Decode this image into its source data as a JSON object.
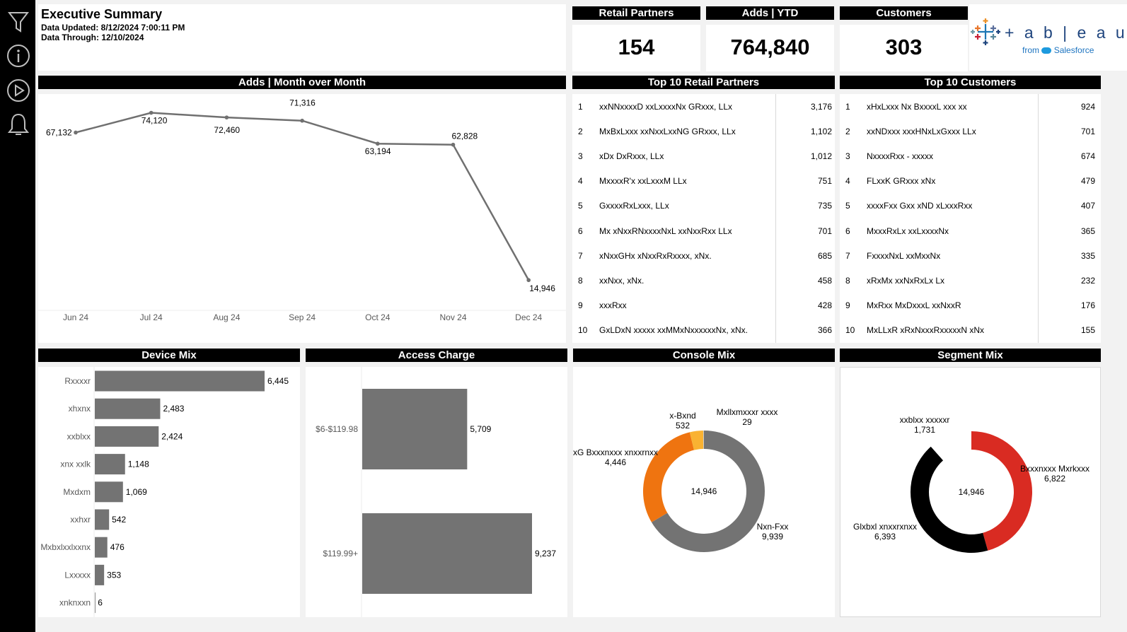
{
  "header": {
    "title": "Executive Summary",
    "updated": "Data Updated: 8/12/2024 7:00:11 PM",
    "through": "Data Through: 12/10/2024"
  },
  "logo": {
    "wordmark": "+ a b | e a u",
    "from": "from",
    "brand": "Salesforce"
  },
  "kpis": [
    {
      "label": "Retail Partners",
      "value": "154"
    },
    {
      "label": "Adds | YTD",
      "value": "764,840"
    },
    {
      "label": "Customers",
      "value": "303"
    }
  ],
  "mom": {
    "title": "Adds | Month over Month",
    "chart_data": {
      "type": "line",
      "categories": [
        "Jun 24",
        "Jul 24",
        "Aug 24",
        "Sep 24",
        "Oct 24",
        "Nov 24",
        "Dec 24"
      ],
      "values": [
        67132,
        74120,
        72460,
        71316,
        63194,
        62828,
        14946
      ],
      "labels": [
        "67,132",
        "74,120",
        "72,460",
        "71,316",
        "63,194",
        "62,828",
        "14,946"
      ],
      "ylim": [
        0,
        80000
      ],
      "color": "#707070"
    }
  },
  "top_partners": {
    "title": "Top 10 Retail Partners",
    "rows": [
      {
        "rank": "1",
        "name": "xxNNxxxxD xxLxxxxNx GRxxx, LLx",
        "value": "3,176"
      },
      {
        "rank": "2",
        "name": "MxBxLxxx xxNxxLxxNG GRxxx, LLx",
        "value": "1,102"
      },
      {
        "rank": "3",
        "name": "xDx DxRxxx, LLx",
        "value": "1,012"
      },
      {
        "rank": "4",
        "name": "MxxxxR'x xxLxxxM LLx",
        "value": "751"
      },
      {
        "rank": "5",
        "name": "GxxxxRxLxxx, LLx",
        "value": "735"
      },
      {
        "rank": "6",
        "name": "Mx xNxxRNxxxxNxL xxNxxRxx LLx",
        "value": "701"
      },
      {
        "rank": "7",
        "name": "xNxxGHx xNxxRxRxxxx, xNx.",
        "value": "685"
      },
      {
        "rank": "8",
        "name": "xxNxx, xNx.",
        "value": "458"
      },
      {
        "rank": "9",
        "name": "xxxRxx",
        "value": "428"
      },
      {
        "rank": "10",
        "name": "GxLDxN xxxxx xxMMxNxxxxxxNx, xNx.",
        "value": "366"
      }
    ]
  },
  "top_customers": {
    "title": "Top 10 Customers",
    "rows": [
      {
        "rank": "1",
        "name": "xHxLxxx Nx  BxxxxL xxx xx",
        "value": "924"
      },
      {
        "rank": "2",
        "name": "xxNDxxx xxxHNxLxGxxx LLx",
        "value": "701"
      },
      {
        "rank": "3",
        "name": "NxxxxRxx - xxxxx",
        "value": "674"
      },
      {
        "rank": "4",
        "name": "FLxxK GRxxx xNx",
        "value": "479"
      },
      {
        "rank": "5",
        "name": "xxxxFxx Gxx xND xLxxxRxx",
        "value": "407"
      },
      {
        "rank": "6",
        "name": "MxxxRxLx xxLxxxxNx",
        "value": "365"
      },
      {
        "rank": "7",
        "name": "FxxxxNxL xxMxxNx",
        "value": "335"
      },
      {
        "rank": "8",
        "name": "xRxMx xxNxRxLx Lx",
        "value": "232"
      },
      {
        "rank": "9",
        "name": "MxRxx MxDxxxL  xxNxxR",
        "value": "176"
      },
      {
        "rank": "10",
        "name": "MxLLxR xRxNxxxRxxxxxN xNx",
        "value": "155"
      }
    ]
  },
  "device_mix": {
    "title": "Device Mix",
    "chart_data": {
      "type": "bar",
      "orientation": "horizontal",
      "categories": [
        "Rxxxxr",
        "xhxnx",
        "xxblxx",
        "xnx xxlk",
        "Mxdxm",
        "xxhxr",
        "Mxbxlxxlxxnx",
        "Lxxxxx",
        "xnknxxn"
      ],
      "values": [
        6445,
        2483,
        2424,
        1148,
        1069,
        542,
        476,
        353,
        6
      ],
      "labels": [
        "6,445",
        "2,483",
        "2,424",
        "1,148",
        "1,069",
        "542",
        "476",
        "353",
        "6"
      ],
      "color": "#737373"
    }
  },
  "access_charge": {
    "title": "Access Charge",
    "chart_data": {
      "type": "bar",
      "orientation": "horizontal",
      "categories": [
        "$6-$119.98",
        "$119.99+"
      ],
      "values": [
        5709,
        9237
      ],
      "labels": [
        "5,709",
        "9,237"
      ],
      "color": "#737373"
    }
  },
  "console_mix": {
    "title": "Console Mix",
    "chart_data": {
      "type": "pie",
      "total_label": "14,946",
      "slices": [
        {
          "name": "Nxn-Fxx",
          "value": 9939,
          "label": "9,939",
          "color": "#737373"
        },
        {
          "name": "xG Bxxxnxxx xnxxrnxx",
          "value": 4446,
          "label": "4,446",
          "color": "#ef7410"
        },
        {
          "name": "x-Bxnd",
          "value": 532,
          "label": "532",
          "color": "#f9b232"
        },
        {
          "name": "Mxllxmxxxr xxxx",
          "value": 29,
          "label": "29",
          "color": "#c9c9c9"
        }
      ]
    }
  },
  "segment_mix": {
    "title": "Segment Mix",
    "chart_data": {
      "type": "pie",
      "total_label": "14,946",
      "slices": [
        {
          "name": "Bxxxnxxx Mxrkxxx",
          "value": 6822,
          "label": "6,822",
          "color": "#d92b22"
        },
        {
          "name": "Glxbxl xnxxrxnxx",
          "value": 6393,
          "label": "6,393",
          "color": "#000000"
        },
        {
          "name": "xxblxx xxxxxr",
          "value": 1731,
          "label": "1,731",
          "color": "#ffffff"
        }
      ]
    }
  }
}
